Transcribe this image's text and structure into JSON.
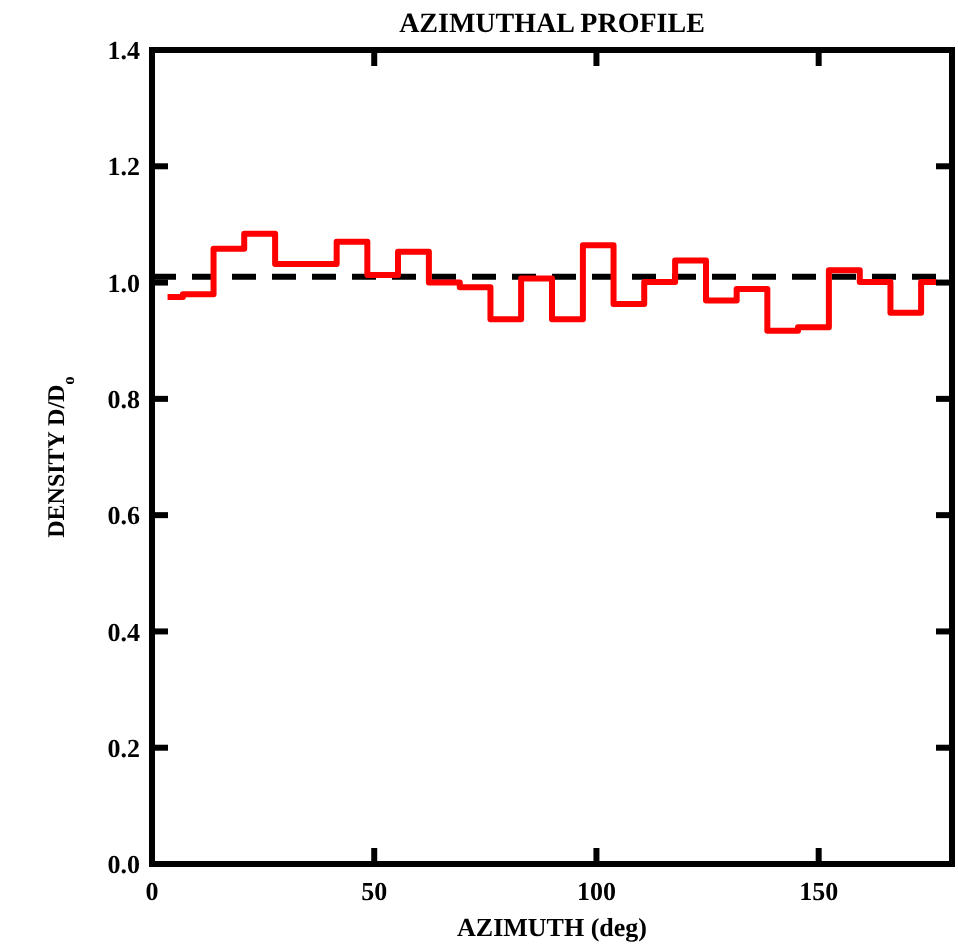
{
  "chart_data": {
    "type": "step",
    "title": "AZIMUTHAL PROFILE",
    "xlabel": "AZIMUTH (deg)",
    "ylabel": "DENSITY   D/D$_{o}$",
    "x": [
      3.5,
      10.4,
      17.3,
      24.2,
      31.2,
      38.1,
      45,
      51.9,
      58.8,
      65.8,
      72.7,
      79.6,
      86.5,
      93.5,
      100.4,
      107.3,
      114.2,
      121.2,
      128.1,
      135,
      141.9,
      148.8,
      155.8,
      162.7,
      169.6,
      176.5
    ],
    "series": [
      {
        "color": "#ff0000",
        "values": [
          0.975,
          0.98,
          1.058,
          1.084,
          1.032,
          1.032,
          1.07,
          1.013,
          1.053,
          1.0,
          0.992,
          0.937,
          1.007,
          0.937,
          1.064,
          0.963,
          1.001,
          1.038,
          0.969,
          0.989,
          0.917,
          0.923,
          1.021,
          1.001,
          0.948,
          1.001
        ]
      }
    ],
    "xlim": [
      0,
      180
    ],
    "xticks": [
      0,
      50,
      100,
      150
    ],
    "ylim": [
      0,
      1.4
    ],
    "yticks": [
      {
        "value": 0,
        "label": "0.0"
      },
      {
        "value": 0.2,
        "label": "0.2"
      },
      {
        "value": 0.4,
        "label": "0.4"
      },
      {
        "value": 0.6,
        "label": "0.6"
      },
      {
        "value": 0.8,
        "label": "0.8"
      },
      {
        "value": 1,
        "label": "1.0"
      },
      {
        "value": 1.2,
        "label": "1.2"
      },
      {
        "value": 1.4,
        "label": "1.4"
      }
    ],
    "ref_lines": [
      {
        "axis": "y",
        "value": 1.01,
        "color": "#000000",
        "line_style": "dashed"
      }
    ],
    "grid": false
  }
}
